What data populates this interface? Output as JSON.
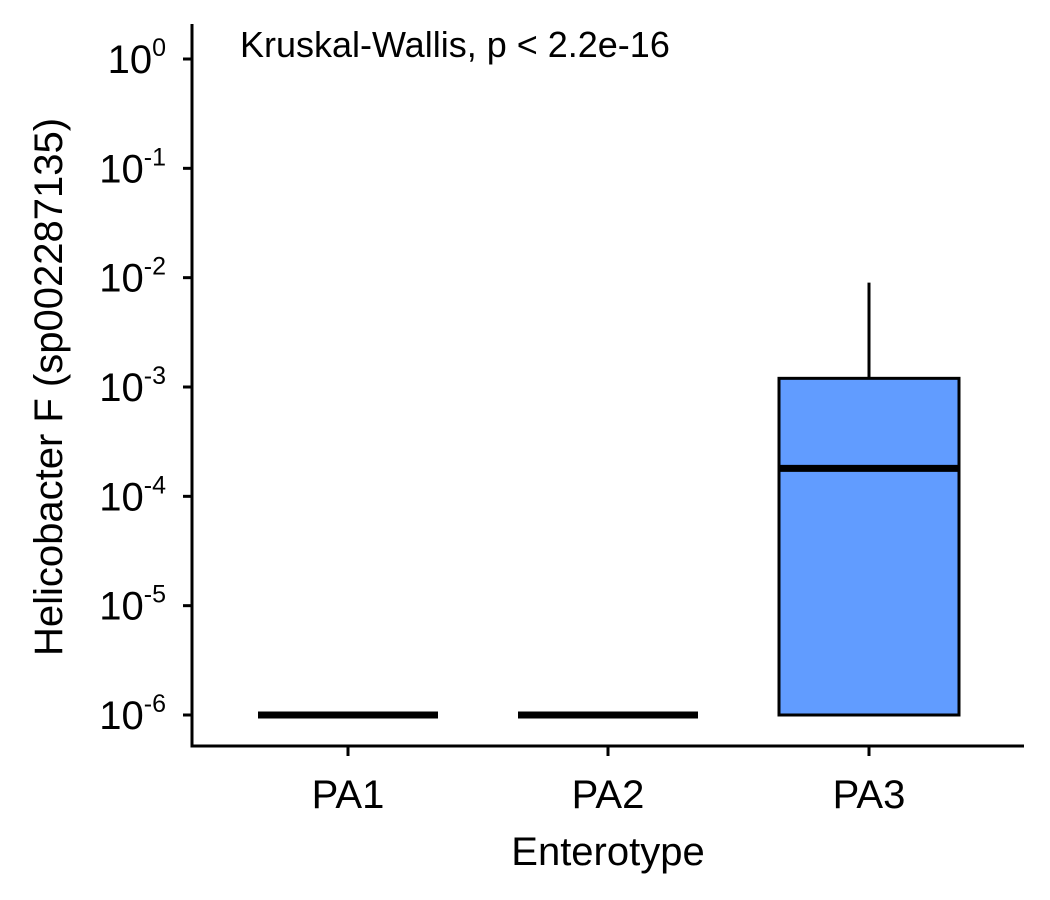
{
  "chart_data": {
    "type": "boxplot",
    "xlabel": "Enterotype",
    "ylabel": "Helicobacter F (sp002287135)",
    "annotation": "Kruskal-Wallis, p < 2.2e-16",
    "categories": [
      "PA1",
      "PA2",
      "PA3"
    ],
    "y_scale": "log10",
    "ylim": [
      4.9e-07,
      1.7
    ],
    "y_ticks": [
      {
        "value": 1e-06,
        "base": "10",
        "exp": "-6"
      },
      {
        "value": 1e-05,
        "base": "10",
        "exp": "-5"
      },
      {
        "value": 0.0001,
        "base": "10",
        "exp": "-4"
      },
      {
        "value": 0.001,
        "base": "10",
        "exp": "-3"
      },
      {
        "value": 0.01,
        "base": "10",
        "exp": "-2"
      },
      {
        "value": 0.1,
        "base": "10",
        "exp": "-1"
      },
      {
        "value": 1,
        "base": "10",
        "exp": "0"
      }
    ],
    "boxes": [
      {
        "category": "PA1",
        "min": 1e-06,
        "q1": 1e-06,
        "median": 1e-06,
        "q3": 1e-06,
        "max": 1e-06
      },
      {
        "category": "PA2",
        "min": 1e-06,
        "q1": 1e-06,
        "median": 1e-06,
        "q3": 1e-06,
        "max": 1e-06
      },
      {
        "category": "PA3",
        "min": 1e-06,
        "q1": 1e-06,
        "median": 0.00018,
        "q3": 0.0012,
        "max": 0.009
      }
    ],
    "box_fill": "#619CFF",
    "grid": false,
    "legend": "none"
  }
}
